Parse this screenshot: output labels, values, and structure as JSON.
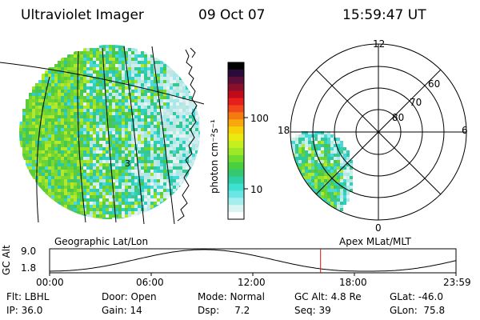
{
  "header": {
    "instrument": "Ultraviolet Imager",
    "date": "09 Oct 07",
    "time": "15:59:47 UT"
  },
  "colorbar": {
    "unit_label": "photon cm⁻²s⁻¹",
    "ticks": [
      "100",
      "10"
    ],
    "scale": "log",
    "colors": [
      "#000000",
      "#2a0a3a",
      "#5a0f3a",
      "#8a0f2a",
      "#c00a1a",
      "#e61e1e",
      "#f04818",
      "#f47a12",
      "#f8a80c",
      "#f8d00a",
      "#eaea10",
      "#c6ef20",
      "#9ee82a",
      "#70dc30",
      "#48d040",
      "#34c870",
      "#2ed0a8",
      "#3ee0d0",
      "#6ae6e6",
      "#a4eeee",
      "#d8f4f4",
      "#ffffff"
    ]
  },
  "left_panel": {
    "caption": "Geographic Lat/Lon",
    "marker": "3"
  },
  "right_panel": {
    "caption": "Apex MLat/MLT",
    "mlt_labels": {
      "top": "12",
      "left": "18",
      "right": "6",
      "bottom": "0"
    },
    "mlat_labels": [
      "60",
      "70",
      "80"
    ]
  },
  "timeline": {
    "axis_label": "GC Alt",
    "y_ticks": [
      "9.0",
      "1.8"
    ],
    "x_ticks": [
      "00:00",
      "06:00",
      "12:00",
      "18:00",
      "23:59"
    ],
    "current_time_fraction": 0.6667,
    "line_color": "#d01818"
  },
  "footer": {
    "rows": [
      [
        "Flt: LBHL",
        "Door: Open",
        "Mode: Normal",
        "GC Alt: 4.8 Re",
        "GLat: -46.0"
      ],
      [
        "IP: 36.0",
        "Gain: 14",
        "Dsp:     7.2",
        "Seq: 39",
        "GLon:  75.8"
      ]
    ]
  }
}
